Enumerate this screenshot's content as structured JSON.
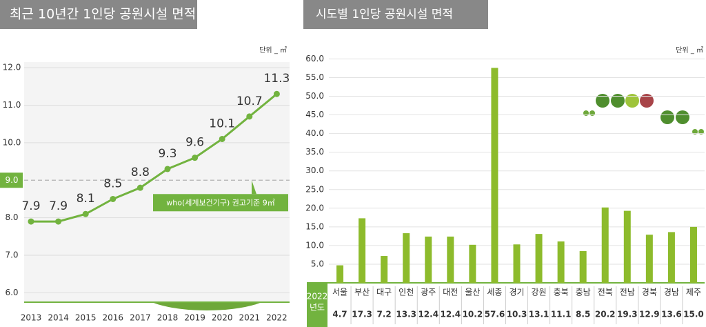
{
  "chart_data": [
    {
      "type": "line",
      "title": "최근 10년간 1인당 공원시설 면적",
      "unit": "단위 _ ㎡",
      "categories": [
        "2013",
        "2014",
        "2015",
        "2016",
        "2017",
        "2018",
        "2019",
        "2020",
        "2021",
        "2022"
      ],
      "values": [
        7.9,
        7.9,
        8.1,
        8.5,
        8.8,
        9.3,
        9.6,
        10.1,
        10.7,
        11.3
      ],
      "value_labels": [
        "7.9",
        "7.9",
        "8.1",
        "8.5",
        "8.8",
        "9.3",
        "9.6",
        "10.1",
        "10.7",
        "11.3"
      ],
      "color": "#72b33f",
      "ylim": [
        5.75,
        12.15
      ],
      "yticks": [
        {
          "value": 6,
          "label": "6.0"
        },
        {
          "value": 7,
          "label": "7.0"
        },
        {
          "value": 8,
          "label": "8.0"
        },
        {
          "value": 9,
          "label": "9.0"
        },
        {
          "value": 10,
          "label": "10.0"
        },
        {
          "value": 11,
          "label": "11.0"
        },
        {
          "value": 12,
          "label": "12.0"
        }
      ],
      "grid": true,
      "reference_line": {
        "value": 9,
        "label": "who(세계보건기구) 권고기준 9㎡"
      }
    },
    {
      "type": "bar",
      "title": "시도별 1인당 공원시설 면적",
      "unit": "단위 _ ㎡",
      "row_header": [
        "2022",
        "년도"
      ],
      "categories": [
        "서울",
        "부산",
        "대구",
        "인천",
        "광주",
        "대전",
        "울산",
        "세종",
        "경기",
        "강원",
        "충북",
        "충남",
        "전북",
        "전남",
        "경북",
        "경남",
        "제주"
      ],
      "values": [
        4.7,
        17.3,
        7.2,
        13.3,
        12.4,
        12.4,
        10.2,
        57.6,
        10.3,
        13.1,
        11.1,
        8.5,
        20.2,
        19.3,
        12.9,
        13.6,
        15
      ],
      "value_labels": [
        "4.7",
        "17.3",
        "7.2",
        "13.3",
        "12.4",
        "12.4",
        "10.2",
        "57.6",
        "10.3",
        "13.1",
        "11.1",
        "8.5",
        "20.2",
        "19.3",
        "12.9",
        "13.6",
        "15.0"
      ],
      "color": "#8dbb2c",
      "ylim": [
        0,
        61
      ],
      "yticks": [
        {
          "value": 5,
          "label": "5.0"
        },
        {
          "value": 10,
          "label": "10.0"
        },
        {
          "value": 15,
          "label": "15.0"
        },
        {
          "value": 20,
          "label": "20.0"
        },
        {
          "value": 25,
          "label": "25.0"
        },
        {
          "value": 30,
          "label": "30.0"
        },
        {
          "value": 35,
          "label": "35.0"
        },
        {
          "value": 40,
          "label": "40.0"
        },
        {
          "value": 45,
          "label": "45.0"
        },
        {
          "value": 50,
          "label": "50.0"
        },
        {
          "value": 55,
          "label": "55.0"
        },
        {
          "value": 60,
          "label": "60.0"
        }
      ],
      "grid": true
    }
  ]
}
